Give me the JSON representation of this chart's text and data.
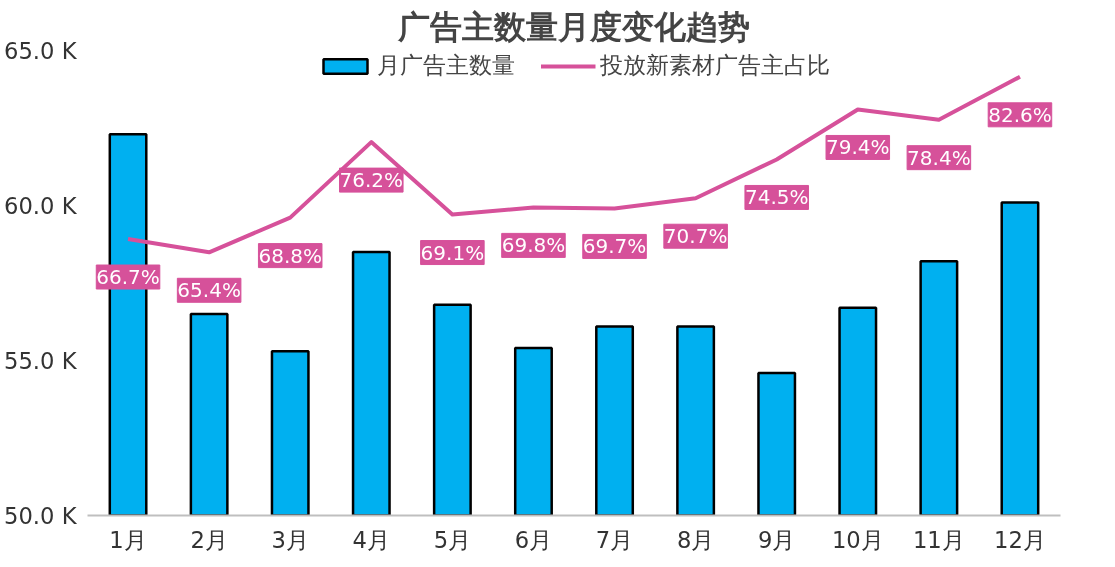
{
  "chart_data": {
    "type": "bar",
    "title": "广告主数量月度变化趋势",
    "categories": [
      "1月",
      "2月",
      "3月",
      "4月",
      "5月",
      "6月",
      "7月",
      "8月",
      "9月",
      "10月",
      "11月",
      "12月"
    ],
    "series": [
      {
        "name": "月广告主数量",
        "color": "#00b0f0",
        "values": [
          62.3,
          56.5,
          55.3,
          58.5,
          56.8,
          55.4,
          56.1,
          56.1,
          54.6,
          56.7,
          58.2,
          60.1
        ]
      },
      {
        "name": "投放新素材广告主占比",
        "type": "line",
        "axis": "y2",
        "color": "#d6519a",
        "values": [
          66.7,
          65.4,
          68.8,
          76.2,
          69.1,
          69.8,
          69.7,
          70.7,
          74.5,
          79.4,
          78.4,
          82.6
        ],
        "value_labels": [
          "66.7%",
          "65.4%",
          "68.8%",
          "76.2%",
          "69.1%",
          "69.8%",
          "69.7%",
          "70.7%",
          "74.5%",
          "79.4%",
          "78.4%",
          "82.6%"
        ]
      }
    ],
    "ylim": [
      50,
      65
    ],
    "yticks": [
      {
        "value": 50,
        "label": "50.0 K"
      },
      {
        "value": 55,
        "label": "55.0 K"
      },
      {
        "value": 60,
        "label": "60.0 K"
      },
      {
        "value": 65,
        "label": "65.0 K"
      }
    ],
    "tick_labels": "xy",
    "grid": false,
    "legend": "top",
    "marker": "none"
  }
}
